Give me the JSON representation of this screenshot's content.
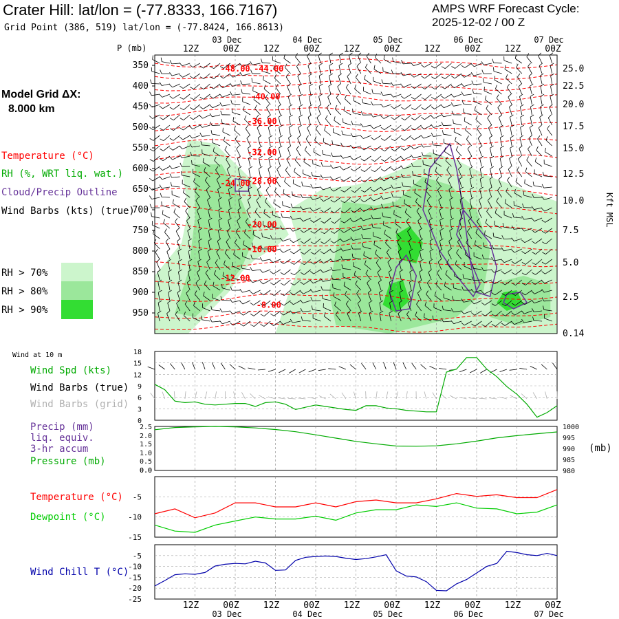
{
  "header": {
    "title": "Crater Hill:  lat/lon = (-77.8333, 166.7167)",
    "subtitle": "Grid Point (386, 519) lat/lon = (-77.8424, 166.8613)",
    "cycle_line1": "AMPS WRF Forecast Cycle:",
    "cycle_line2": "2025-12-02 / 00  Z"
  },
  "left_panel": {
    "grid_label": "Model Grid ΔX:",
    "grid_value": "8.000 km",
    "legend_temperature": "Temperature (°C)",
    "legend_rh": "RH (%, WRT liq. wat.)",
    "legend_cloud": "Cloud/Precip Outline",
    "legend_wind": "Wind Barbs (kts) (true)",
    "rh_keys": [
      {
        "label": "RH > 70%",
        "color": "#ccf5cc"
      },
      {
        "label": "RH > 80%",
        "color": "#9be79b"
      },
      {
        "label": "RH > 90%",
        "color": "#33dd33"
      }
    ]
  },
  "colors": {
    "temperature": "#ff0000",
    "cloud_outline": "#663399",
    "wind_10m_speed": "#00aa00",
    "pressure": "#00aa00",
    "dewpoint": "#00cc00",
    "wind_chill": "#0000aa",
    "grid_barbs": "#b0b0b0",
    "precip_label": "#663399"
  },
  "chart_data": [
    {
      "type": "heatmap",
      "name_hint": "cross-section",
      "ylabel": "P (mb)",
      "y2label": "Kft MSL",
      "top_time_labels": [
        "12Z",
        "00Z",
        "12Z",
        "00Z",
        "12Z",
        "00Z",
        "12Z",
        "00Z",
        "12Z",
        "00Z"
      ],
      "top_date_labels": [
        "03 Dec",
        "04 Dec",
        "05 Dec",
        "06 Dec",
        "07 Dec"
      ],
      "pressure_ticks": [
        350,
        400,
        450,
        500,
        550,
        600,
        650,
        700,
        750,
        800,
        850,
        900,
        950
      ],
      "height_ticks": [
        "25.0",
        "22.5",
        "20.0",
        "17.5",
        "15.0",
        "12.5",
        "10.0",
        "7.5",
        "5.0",
        "2.5",
        "0.14"
      ],
      "ylim": [
        1000,
        325
      ],
      "xlim_hours": [
        0,
        120
      ],
      "isotherm_labels": [
        {
          "text": "-48.00",
          "hour": 24,
          "p": 358
        },
        {
          "text": "-44.00",
          "hour": 34,
          "p": 358
        },
        {
          "text": "-40.00",
          "hour": 33,
          "p": 426
        },
        {
          "text": "-36.00",
          "hour": 32,
          "p": 486
        },
        {
          "text": "-32.00",
          "hour": 32,
          "p": 561
        },
        {
          "text": "-28.00",
          "hour": 32,
          "p": 631
        },
        {
          "text": "-24.00",
          "hour": 24,
          "p": 636
        },
        {
          "text": "-20.00",
          "hour": 32,
          "p": 736
        },
        {
          "text": "-16.00",
          "hour": 32,
          "p": 796
        },
        {
          "text": "-12.00",
          "hour": 24,
          "p": 866
        },
        {
          "text": "-8.00",
          "hour": 34,
          "p": 931
        }
      ]
    },
    {
      "type": "line",
      "panel_label": "Wind at 10 m",
      "series_label_speed": "Wind Spd (kts)",
      "series_label_barbs_true": "Wind Barbs (true)",
      "series_label_barbs_grid": "Wind Barbs (grid)",
      "y_ticks": [
        0,
        3,
        6,
        9,
        12,
        15,
        18
      ],
      "ylim": [
        0,
        18
      ],
      "x_hours": [
        0,
        3,
        6,
        9,
        12,
        15,
        18,
        21,
        24,
        27,
        30,
        33,
        36,
        39,
        42,
        45,
        48,
        51,
        54,
        57,
        60,
        63,
        66,
        69,
        72,
        75,
        78,
        81,
        84,
        87,
        90,
        93,
        96,
        99,
        102,
        105,
        108,
        111,
        114,
        117,
        120
      ],
      "wind_speed_kts": [
        9.4,
        8,
        5,
        4.6,
        4.8,
        4.2,
        4,
        4.2,
        4.4,
        4.4,
        3.6,
        4.6,
        4.8,
        4.2,
        2.8,
        3.4,
        4,
        3.6,
        3.2,
        2.8,
        2.6,
        3.8,
        3.8,
        3.2,
        3,
        2.6,
        2.4,
        2.2,
        2.2,
        12.6,
        13.4,
        16.4,
        16.4,
        13.4,
        11.4,
        8.8,
        6.8,
        4.2,
        0.8,
        2,
        3.8
      ]
    },
    {
      "type": "line",
      "series_label_precip1": "Precip (mm)",
      "series_label_precip2": "liq. equiv.",
      "series_label_precip3": "3-hr accum",
      "series_label_pressure": "Pressure (mb)",
      "precip_ticks": [
        "2.5",
        "2.0",
        "1.5",
        "1.0",
        "0.5",
        "0.0",
        "0.0"
      ],
      "pressure_ticks": [
        1000,
        995,
        990,
        985,
        980
      ],
      "pressure_unit": "(mb)",
      "ylim": [
        980,
        1000
      ],
      "x_hours": [
        0,
        6,
        12,
        18,
        24,
        30,
        36,
        42,
        48,
        54,
        60,
        66,
        72,
        78,
        84,
        90,
        96,
        102,
        108,
        114,
        120
      ],
      "pressure_mb": [
        998.5,
        999.5,
        999.8,
        1000,
        999.8,
        999.3,
        998.6,
        997.6,
        996.2,
        994.7,
        993.2,
        992.1,
        991.1,
        991,
        991.2,
        992.1,
        993.3,
        994.8,
        995.8,
        996.7,
        997.5
      ]
    },
    {
      "type": "line",
      "series_label_temperature": "Temperature (°C)",
      "series_label_dewpoint": "Dewpoint (°C)",
      "y_ticks": [
        -5,
        -10,
        -15
      ],
      "ylim": [
        -15,
        0
      ],
      "x_hours": [
        0,
        6,
        12,
        18,
        24,
        30,
        36,
        42,
        48,
        54,
        60,
        66,
        72,
        78,
        84,
        90,
        96,
        102,
        108,
        114,
        120
      ],
      "temperature_c": [
        -9.2,
        -8,
        -10.2,
        -9,
        -6.5,
        -6.5,
        -7.5,
        -7.5,
        -6.5,
        -7.5,
        -6.2,
        -5.8,
        -6.5,
        -6.5,
        -5.5,
        -4.2,
        -4.9,
        -4.5,
        -5.2,
        -5.2,
        -3.2
      ],
      "dewpoint_c": [
        -12,
        -13.5,
        -13.8,
        -12,
        -11,
        -10,
        -10.5,
        -10.5,
        -9.8,
        -10.8,
        -9,
        -8.2,
        -8.2,
        -7,
        -7.4,
        -6.5,
        -7.8,
        -8,
        -9.2,
        -8.8,
        -7
      ]
    },
    {
      "type": "line",
      "series_label_windchill": "Wind Chill T (°C)",
      "y_ticks": [
        -5,
        -10,
        -15,
        -20,
        -25
      ],
      "ylim": [
        -25,
        0
      ],
      "x_hours": [
        0,
        3,
        6,
        9,
        12,
        15,
        18,
        21,
        24,
        27,
        30,
        33,
        36,
        39,
        42,
        45,
        48,
        51,
        54,
        57,
        60,
        63,
        66,
        69,
        72,
        75,
        78,
        81,
        84,
        87,
        90,
        93,
        96,
        99,
        102,
        105,
        108,
        111,
        114,
        117,
        120
      ],
      "wind_chill_c": [
        -19,
        -16.5,
        -13.8,
        -13.4,
        -13.6,
        -12.8,
        -9.8,
        -9,
        -8.6,
        -8.8,
        -7.6,
        -8.4,
        -11.8,
        -11.6,
        -7.2,
        -5.8,
        -5.4,
        -5.2,
        -5.4,
        -6.2,
        -6.8,
        -6.4,
        -5.6,
        -4.6,
        -12,
        -14.4,
        -14.8,
        -17,
        -21,
        -21.2,
        -18,
        -16,
        -13,
        -10,
        -8.6,
        -3,
        -3.6,
        -4.6,
        -5,
        -4,
        -5
      ]
    }
  ],
  "bottom_axis": {
    "time_labels": [
      "12Z",
      "00Z",
      "12Z",
      "00Z",
      "12Z",
      "00Z",
      "12Z",
      "00Z",
      "12Z",
      "00Z"
    ],
    "date_labels": [
      "03 Dec",
      "04 Dec",
      "05 Dec",
      "06 Dec",
      "07 Dec"
    ]
  }
}
